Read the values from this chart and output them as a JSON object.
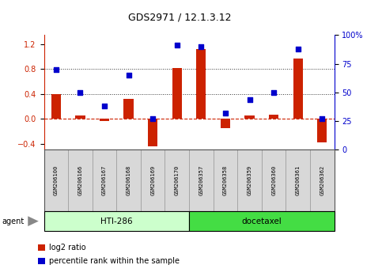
{
  "title": "GDS2971 / 12.1.3.12",
  "samples": [
    "GSM206100",
    "GSM206166",
    "GSM206167",
    "GSM206168",
    "GSM206169",
    "GSM206170",
    "GSM206357",
    "GSM206358",
    "GSM206359",
    "GSM206360",
    "GSM206361",
    "GSM206362"
  ],
  "log2_ratio": [
    0.4,
    0.05,
    -0.03,
    0.32,
    -0.45,
    0.82,
    1.13,
    -0.15,
    0.05,
    0.07,
    0.97,
    -0.38
  ],
  "pct_rank": [
    70,
    50,
    38,
    65,
    27,
    91,
    90,
    32,
    44,
    50,
    88,
    27
  ],
  "groups": [
    {
      "label": "HTI-286",
      "start": 0,
      "end": 5,
      "color": "#ccffcc"
    },
    {
      "label": "docetaxel",
      "start": 6,
      "end": 11,
      "color": "#44dd44"
    }
  ],
  "bar_color": "#cc2200",
  "dot_color": "#0000cc",
  "ylim_left": [
    -0.5,
    1.35
  ],
  "ylim_right": [
    0,
    100
  ],
  "yticks_left": [
    -0.4,
    0.0,
    0.4,
    0.8,
    1.2
  ],
  "yticks_right": [
    0,
    25,
    50,
    75,
    100
  ],
  "hlines_dotted": [
    0.4,
    0.8
  ],
  "hline_zero_color": "#cc2200",
  "hline_dotted_color": "#333333",
  "plot_bg": "#ffffff",
  "agent_label": "agent",
  "legend_items": [
    {
      "label": "log2 ratio",
      "color": "#cc2200"
    },
    {
      "label": "percentile rank within the sample",
      "color": "#0000cc"
    }
  ]
}
